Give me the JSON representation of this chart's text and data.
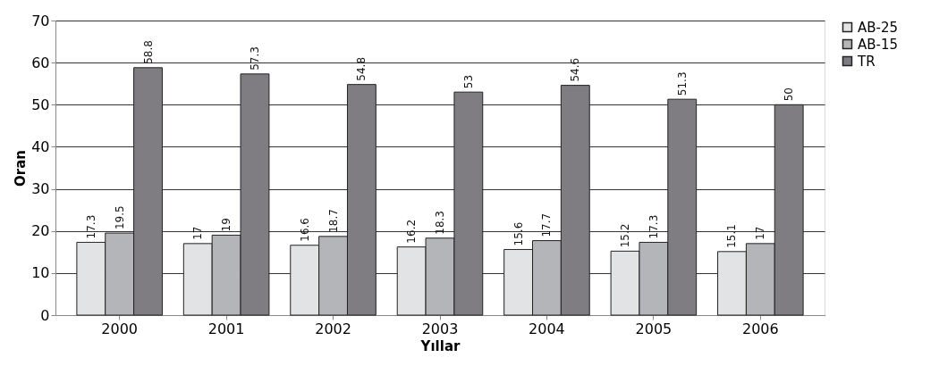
{
  "chart_data": {
    "type": "bar",
    "xlabel": "Yıllar",
    "ylabel": "Oran",
    "categories": [
      "2000",
      "2001",
      "2002",
      "2003",
      "2004",
      "2005",
      "2006"
    ],
    "series": [
      {
        "name": "AB-25",
        "color": "#e2e3e5",
        "values": [
          17.3,
          17,
          16.6,
          16.2,
          15.6,
          15.2,
          15.1
        ]
      },
      {
        "name": "AB-15",
        "color": "#b4b5b8",
        "values": [
          19.5,
          19,
          18.7,
          18.3,
          17.7,
          17.3,
          17
        ]
      },
      {
        "name": "TR",
        "color": "#7f7d82",
        "values": [
          58.8,
          57.3,
          54.8,
          53,
          54.6,
          51.3,
          50
        ]
      }
    ],
    "ylim": [
      0,
      70
    ],
    "yticks": [
      0,
      10,
      20,
      30,
      40,
      50,
      60,
      70
    ],
    "grid": "y",
    "legend": "right",
    "data_labels": true
  }
}
